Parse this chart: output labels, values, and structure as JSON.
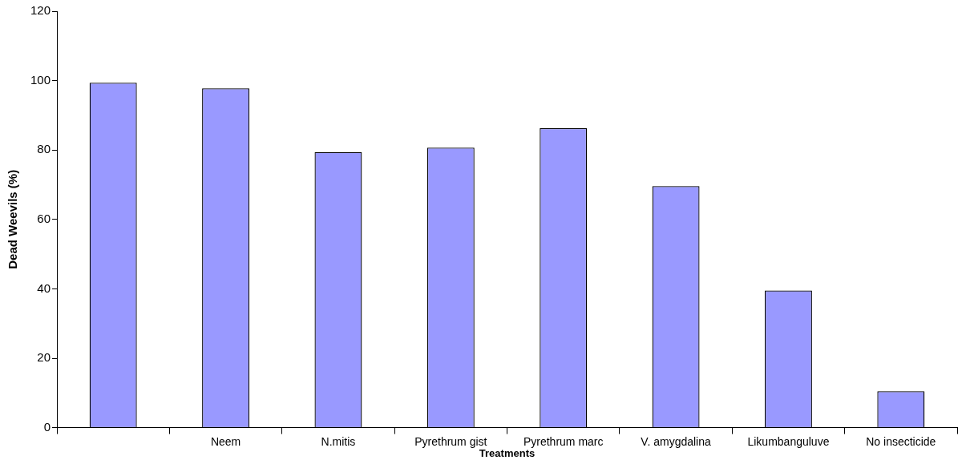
{
  "chart_data": {
    "type": "bar",
    "xlabel": "Treatments",
    "ylabel": "Dead Weevils (%)",
    "categories": [
      null,
      "Neem",
      "N.mitis",
      "Pyrethrum gist",
      "Pyrethrum marc",
      "V. amygdalina",
      "Likumbanguluve",
      "No insecticide"
    ],
    "values": [
      99.4,
      97.8,
      79.4,
      80.7,
      86.3,
      69.6,
      39.5,
      10.5
    ],
    "color": "#9999ff",
    "ylim": [
      0,
      120
    ],
    "yticks": [
      0,
      20,
      40,
      60,
      80,
      100,
      120
    ],
    "grid": false,
    "legend": false
  }
}
